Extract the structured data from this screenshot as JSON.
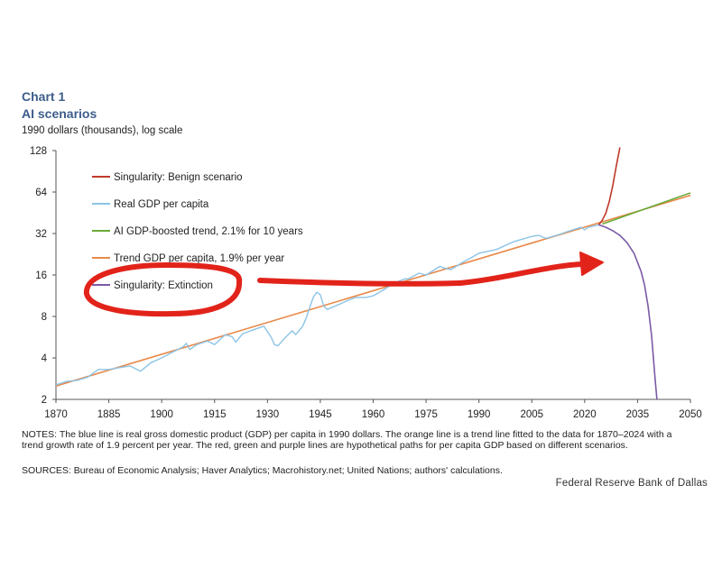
{
  "header": {
    "chart_number": "Chart 1",
    "title": "AI scenarios",
    "units": "1990 dollars (thousands),  log scale"
  },
  "notes": "NOTES: The blue line is real gross domestic product (GDP) per capita in 1990 dollars. The orange line is a trend line fitted to the data for 1870–2024 with a trend growth rate of 1.9 percent per year. The red, green and purple lines are hypothetical paths for per capita GDP based on different scenarios.",
  "sources": "SOURCES: Bureau of Economic Analysis; Haver Analytics; Macrohistory.net; United Nations; authors' calculations.",
  "footer": "Federal Reserve Bank of Dallas",
  "colors": {
    "benign": "#c0392b",
    "real_gdp": "#8cc4e6",
    "ai_trend": "#6aaa3a",
    "trend": "#e8894a",
    "extinction": "#7b5aa6",
    "annotation": "#e2231a"
  },
  "chart_data": {
    "type": "line",
    "yscale": "log2",
    "xlim": [
      1870,
      2050
    ],
    "ylim": [
      2,
      128
    ],
    "x_ticks": [
      "1870",
      "1885",
      "1900",
      "1915",
      "1930",
      "1945",
      "1960",
      "1975",
      "1990",
      "2005",
      "2020",
      "2035",
      "2050"
    ],
    "y_ticks": [
      "2",
      "4",
      "8",
      "16",
      "32",
      "64",
      "128"
    ],
    "legend": [
      "Singularity: Benign scenario",
      "Real GDP per capita",
      "AI GDP-boosted trend, 2.1% for 10 years",
      "Trend GDP per capita, 1.9% per year",
      "Singularity: Extinction"
    ],
    "series": [
      {
        "name": "Trend GDP per capita, 1.9% per year",
        "key": "trend",
        "x": [
          1870,
          2050
        ],
        "y": [
          2.5,
          60.5
        ]
      },
      {
        "name": "AI GDP-boosted trend, 2.1% for 10 years",
        "key": "ai_trend",
        "x": [
          2025,
          2035,
          2050
        ],
        "y": [
          37.5,
          46.2,
          63.0
        ]
      },
      {
        "name": "Real GDP per capita",
        "key": "real_gdp",
        "x": [
          1870,
          1873,
          1876,
          1879,
          1882,
          1885,
          1888,
          1891,
          1894,
          1897,
          1900,
          1903,
          1906,
          1907,
          1908,
          1910,
          1913,
          1915,
          1918,
          1920,
          1921,
          1923,
          1926,
          1929,
          1930,
          1931,
          1932,
          1933,
          1935,
          1937,
          1938,
          1940,
          1941,
          1942,
          1943,
          1944,
          1945,
          1946,
          1947,
          1950,
          1953,
          1955,
          1958,
          1960,
          1963,
          1966,
          1969,
          1970,
          1973,
          1975,
          1979,
          1980,
          1982,
          1985,
          1988,
          1990,
          1995,
          2000,
          2005,
          2007,
          2009,
          2012,
          2015,
          2019,
          2020,
          2021,
          2024
        ],
        "y": [
          2.55,
          2.7,
          2.75,
          2.9,
          3.3,
          3.3,
          3.4,
          3.5,
          3.2,
          3.7,
          4.0,
          4.4,
          4.8,
          5.1,
          4.6,
          5.0,
          5.3,
          5.0,
          5.9,
          5.7,
          5.2,
          6.0,
          6.4,
          6.8,
          6.2,
          5.7,
          5.0,
          4.9,
          5.6,
          6.3,
          5.9,
          6.8,
          7.8,
          9.3,
          11.0,
          12.0,
          11.5,
          9.5,
          9.0,
          9.7,
          10.5,
          11.0,
          11.0,
          11.3,
          12.5,
          14.0,
          15.0,
          15.0,
          16.5,
          16.0,
          18.5,
          18.0,
          17.5,
          19.5,
          21.5,
          23.0,
          24.5,
          28.0,
          30.5,
          31.0,
          29.5,
          31.0,
          33.0,
          35.5,
          34.0,
          35.5,
          37.0
        ]
      },
      {
        "name": "Singularity: Benign scenario",
        "key": "benign",
        "x": [
          2024,
          2025,
          2026,
          2027,
          2028,
          2029,
          2030
        ],
        "y": [
          37,
          40,
          45,
          55,
          72,
          100,
          135
        ]
      },
      {
        "name": "Singularity: Extinction",
        "key": "extinction",
        "x": [
          2024,
          2026,
          2028,
          2030,
          2032,
          2034,
          2036,
          2037,
          2038,
          2039,
          2040,
          2040.5
        ],
        "y": [
          37,
          35.5,
          33.5,
          31,
          27.5,
          23,
          17,
          13.5,
          9.5,
          5.8,
          2.8,
          2.0
        ]
      }
    ]
  }
}
